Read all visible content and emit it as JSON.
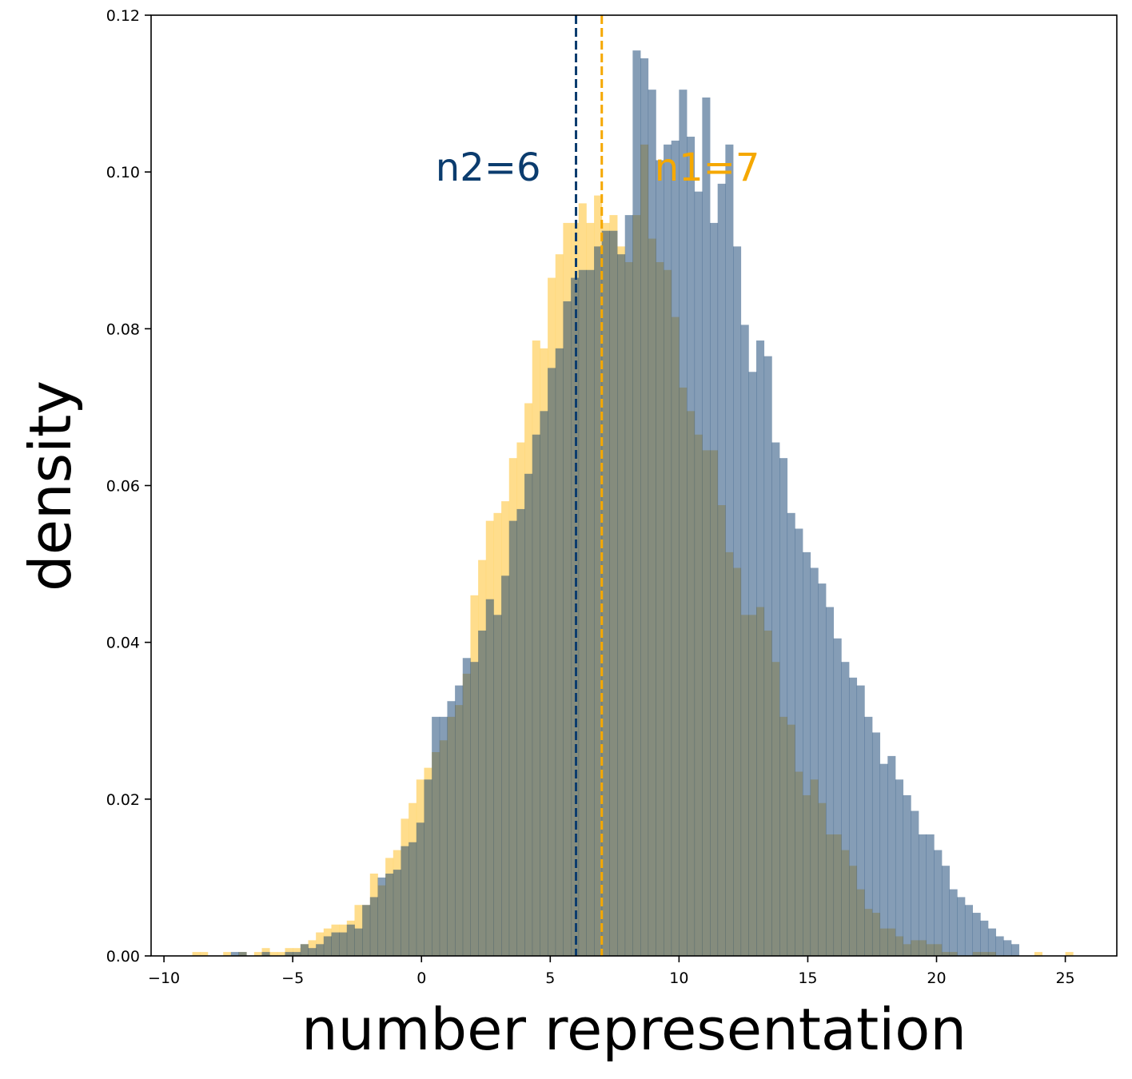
{
  "chart_data": {
    "type": "histogram",
    "title": "",
    "xlabel": "number representation",
    "ylabel": "density",
    "xlim": [
      -10.5,
      27
    ],
    "ylim": [
      0,
      0.12
    ],
    "xticks": [
      -10,
      -5,
      0,
      5,
      10,
      15,
      20,
      25
    ],
    "xtick_labels": [
      "−10",
      "−5",
      "0",
      "5",
      "10",
      "15",
      "20",
      "25"
    ],
    "yticks": [
      0,
      0.02,
      0.04,
      0.06,
      0.08,
      0.1,
      0.12
    ],
    "ytick_labels": [
      "0.00",
      "0.02",
      "0.04",
      "0.06",
      "0.08",
      "0.10",
      "0.12"
    ],
    "grid": false,
    "bin_width": 0.3,
    "series": [
      {
        "color": "#FFD166",
        "opacity": 0.75,
        "bins": [
          [
            -8.9,
            0.0005
          ],
          [
            -8.6,
            0.0005
          ],
          [
            -7.7,
            0.0005
          ],
          [
            -7.1,
            0.0005
          ],
          [
            -6.5,
            0.0005
          ],
          [
            -6.2,
            0.001
          ],
          [
            -5.9,
            0.0005
          ],
          [
            -5.6,
            0.0005
          ],
          [
            -5.3,
            0.001
          ],
          [
            -5.0,
            0.001
          ],
          [
            -4.7,
            0.0015
          ],
          [
            -4.4,
            0.002
          ],
          [
            -4.1,
            0.003
          ],
          [
            -3.8,
            0.0035
          ],
          [
            -3.5,
            0.004
          ],
          [
            -3.2,
            0.004
          ],
          [
            -2.9,
            0.0045
          ],
          [
            -2.6,
            0.0065
          ],
          [
            -2.3,
            0.0065
          ],
          [
            -2.0,
            0.0105
          ],
          [
            -1.7,
            0.009
          ],
          [
            -1.4,
            0.0125
          ],
          [
            -1.1,
            0.0135
          ],
          [
            -0.8,
            0.0175
          ],
          [
            -0.5,
            0.0195
          ],
          [
            -0.2,
            0.0225
          ],
          [
            0.1,
            0.024
          ],
          [
            0.4,
            0.026
          ],
          [
            0.7,
            0.0275
          ],
          [
            1.0,
            0.0305
          ],
          [
            1.3,
            0.032
          ],
          [
            1.6,
            0.036
          ],
          [
            1.9,
            0.046
          ],
          [
            2.2,
            0.0505
          ],
          [
            2.5,
            0.0555
          ],
          [
            2.8,
            0.0565
          ],
          [
            3.1,
            0.058
          ],
          [
            3.4,
            0.0635
          ],
          [
            3.7,
            0.0655
          ],
          [
            4.0,
            0.0705
          ],
          [
            4.3,
            0.0785
          ],
          [
            4.6,
            0.0775
          ],
          [
            4.9,
            0.0865
          ],
          [
            5.2,
            0.0895
          ],
          [
            5.5,
            0.0935
          ],
          [
            5.8,
            0.0935
          ],
          [
            6.1,
            0.096
          ],
          [
            6.4,
            0.0935
          ],
          [
            6.7,
            0.097
          ],
          [
            7.0,
            0.0935
          ],
          [
            7.3,
            0.0945
          ],
          [
            7.6,
            0.0905
          ],
          [
            7.9,
            0.0885
          ],
          [
            8.2,
            0.0945
          ],
          [
            8.5,
            0.1035
          ],
          [
            8.8,
            0.0915
          ],
          [
            9.1,
            0.0885
          ],
          [
            9.4,
            0.0875
          ],
          [
            9.7,
            0.0815
          ],
          [
            10.0,
            0.0725
          ],
          [
            10.3,
            0.0695
          ],
          [
            10.6,
            0.0665
          ],
          [
            10.9,
            0.0645
          ],
          [
            11.2,
            0.0645
          ],
          [
            11.5,
            0.0575
          ],
          [
            11.8,
            0.0515
          ],
          [
            12.1,
            0.0495
          ],
          [
            12.4,
            0.0435
          ],
          [
            12.7,
            0.0435
          ],
          [
            13.0,
            0.0445
          ],
          [
            13.3,
            0.0415
          ],
          [
            13.6,
            0.0375
          ],
          [
            13.9,
            0.0305
          ],
          [
            14.2,
            0.0295
          ],
          [
            14.5,
            0.0235
          ],
          [
            14.8,
            0.0205
          ],
          [
            15.1,
            0.0225
          ],
          [
            15.4,
            0.0195
          ],
          [
            15.7,
            0.0155
          ],
          [
            16.0,
            0.0155
          ],
          [
            16.3,
            0.0135
          ],
          [
            16.6,
            0.0115
          ],
          [
            16.9,
            0.0085
          ],
          [
            17.2,
            0.006
          ],
          [
            17.5,
            0.0055
          ],
          [
            17.8,
            0.0035
          ],
          [
            18.1,
            0.0035
          ],
          [
            18.4,
            0.0025
          ],
          [
            18.7,
            0.0015
          ],
          [
            19.0,
            0.002
          ],
          [
            19.3,
            0.002
          ],
          [
            19.6,
            0.0015
          ],
          [
            19.9,
            0.0015
          ],
          [
            20.2,
            0.0005
          ],
          [
            20.5,
            0.0005
          ],
          [
            21.4,
            0.0005
          ],
          [
            21.7,
            0.0005
          ],
          [
            22.0,
            0.0005
          ],
          [
            23.8,
            0.0005
          ],
          [
            25.0,
            0.0005
          ]
        ]
      },
      {
        "color": "#0B3C6E",
        "opacity": 0.5,
        "bins": [
          [
            -7.4,
            0.0005
          ],
          [
            -7.1,
            0.0005
          ],
          [
            -6.2,
            0.0005
          ],
          [
            -5.3,
            0.0005
          ],
          [
            -5.0,
            0.0005
          ],
          [
            -4.7,
            0.0015
          ],
          [
            -4.4,
            0.001
          ],
          [
            -4.1,
            0.0015
          ],
          [
            -3.8,
            0.0025
          ],
          [
            -3.5,
            0.003
          ],
          [
            -3.2,
            0.003
          ],
          [
            -2.9,
            0.004
          ],
          [
            -2.6,
            0.0035
          ],
          [
            -2.3,
            0.0065
          ],
          [
            -2.0,
            0.0075
          ],
          [
            -1.7,
            0.01
          ],
          [
            -1.4,
            0.0105
          ],
          [
            -1.1,
            0.011
          ],
          [
            -0.8,
            0.014
          ],
          [
            -0.5,
            0.0145
          ],
          [
            -0.2,
            0.017
          ],
          [
            0.1,
            0.0225
          ],
          [
            0.4,
            0.0305
          ],
          [
            0.7,
            0.0305
          ],
          [
            1.0,
            0.0325
          ],
          [
            1.3,
            0.0345
          ],
          [
            1.6,
            0.038
          ],
          [
            1.9,
            0.0375
          ],
          [
            2.2,
            0.0415
          ],
          [
            2.5,
            0.0455
          ],
          [
            2.8,
            0.0435
          ],
          [
            3.1,
            0.0485
          ],
          [
            3.4,
            0.0555
          ],
          [
            3.7,
            0.057
          ],
          [
            4.0,
            0.0615
          ],
          [
            4.3,
            0.0665
          ],
          [
            4.6,
            0.0695
          ],
          [
            4.9,
            0.075
          ],
          [
            5.2,
            0.0775
          ],
          [
            5.5,
            0.0835
          ],
          [
            5.8,
            0.0865
          ],
          [
            6.1,
            0.0875
          ],
          [
            6.4,
            0.0875
          ],
          [
            6.7,
            0.0905
          ],
          [
            7.0,
            0.0925
          ],
          [
            7.3,
            0.0925
          ],
          [
            7.6,
            0.0895
          ],
          [
            7.9,
            0.0945
          ],
          [
            8.2,
            0.1155
          ],
          [
            8.5,
            0.1145
          ],
          [
            8.8,
            0.1105
          ],
          [
            9.1,
            0.1015
          ],
          [
            9.4,
            0.1035
          ],
          [
            9.7,
            0.104
          ],
          [
            10.0,
            0.1105
          ],
          [
            10.3,
            0.1045
          ],
          [
            10.6,
            0.0975
          ],
          [
            10.9,
            0.1095
          ],
          [
            11.2,
            0.0935
          ],
          [
            11.5,
            0.0985
          ],
          [
            11.8,
            0.1035
          ],
          [
            12.1,
            0.0905
          ],
          [
            12.4,
            0.0805
          ],
          [
            12.7,
            0.0745
          ],
          [
            13.0,
            0.0785
          ],
          [
            13.3,
            0.0765
          ],
          [
            13.6,
            0.0655
          ],
          [
            13.9,
            0.0635
          ],
          [
            14.2,
            0.0565
          ],
          [
            14.5,
            0.0545
          ],
          [
            14.8,
            0.0515
          ],
          [
            15.1,
            0.0495
          ],
          [
            15.4,
            0.0475
          ],
          [
            15.7,
            0.0445
          ],
          [
            16.0,
            0.0405
          ],
          [
            16.3,
            0.0375
          ],
          [
            16.6,
            0.0355
          ],
          [
            16.9,
            0.0345
          ],
          [
            17.2,
            0.0305
          ],
          [
            17.5,
            0.0285
          ],
          [
            17.8,
            0.0245
          ],
          [
            18.1,
            0.0255
          ],
          [
            18.4,
            0.0225
          ],
          [
            18.7,
            0.0205
          ],
          [
            19.0,
            0.0185
          ],
          [
            19.3,
            0.0155
          ],
          [
            19.6,
            0.0155
          ],
          [
            19.9,
            0.0135
          ],
          [
            20.2,
            0.0115
          ],
          [
            20.5,
            0.0085
          ],
          [
            20.8,
            0.0075
          ],
          [
            21.1,
            0.0065
          ],
          [
            21.4,
            0.0055
          ],
          [
            21.7,
            0.0045
          ],
          [
            22.0,
            0.0035
          ],
          [
            22.3,
            0.0025
          ],
          [
            22.6,
            0.002
          ],
          [
            22.9,
            0.0015
          ]
        ]
      }
    ],
    "reference_lines": [
      {
        "x": 6,
        "color": "#0B3C6E",
        "style": "dashed",
        "label": "n2=6"
      },
      {
        "x": 7,
        "color": "#F5A800",
        "style": "dashed",
        "label": "n1=7"
      }
    ]
  }
}
